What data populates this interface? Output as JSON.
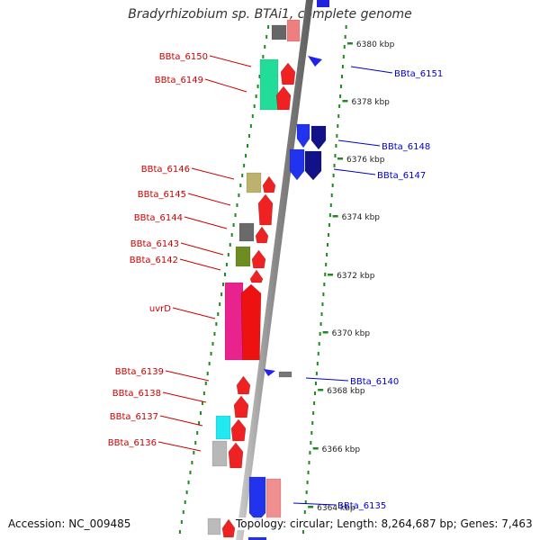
{
  "title": "Bradyrhizobium sp. BTAi1, complete genome",
  "accession": "Accession: NC_009485",
  "summary": "Topology: circular; Length: 8,264,687 bp; Genes: 7,463",
  "colors": {
    "label_left": "#cc0000",
    "label_right": "#0000cc",
    "tick_green": "#1f8a1f",
    "backbone": "#9a9a9a"
  },
  "ticks": [
    "6380 kbp",
    "6378 kbp",
    "6376 kbp",
    "6374 kbp",
    "6372 kbp",
    "6370 kbp",
    "6368 kbp",
    "6366 kbp",
    "6364 kbp"
  ],
  "genes_left": [
    "BBta_6150",
    "BBta_6149",
    "BBta_6146",
    "BBta_6145",
    "BBta_6144",
    "BBta_6143",
    "BBta_6142",
    "uvrD",
    "BBta_6139",
    "BBta_6138",
    "BBta_6137",
    "BBta_6136"
  ],
  "genes_right": [
    "BBta_6151",
    "BBta_6148",
    "BBta_6147",
    "BBta_6140",
    "BBta_6135"
  ]
}
